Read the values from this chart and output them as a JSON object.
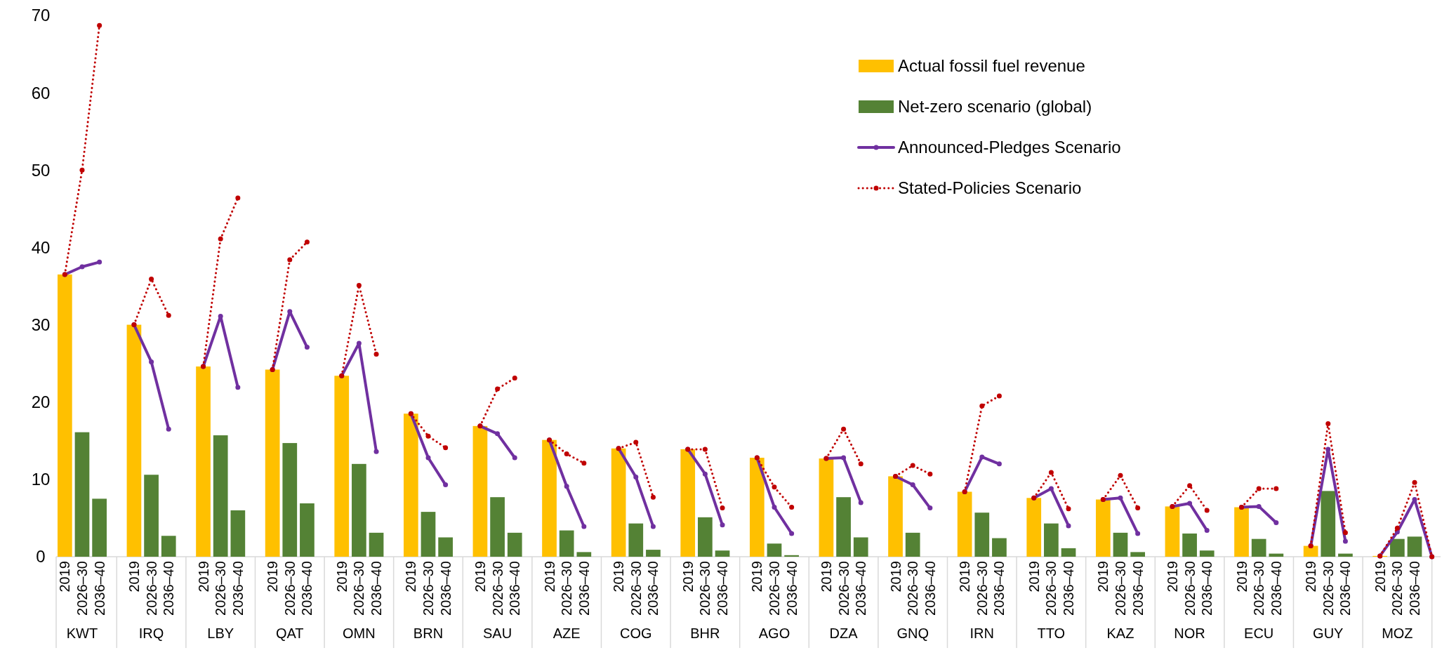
{
  "chart_data": {
    "type": "bar",
    "categories": [
      "2019",
      "2026–30",
      "2036–40",
      null,
      "2019",
      "2026–30",
      "2036–40",
      null,
      "2019",
      "2026–30",
      "2036–40",
      null,
      "2019",
      "2026–30",
      "2036–40",
      null,
      "2019",
      "2026–30",
      "2036–40",
      null,
      "2019",
      "2026–30",
      "2036–40",
      null,
      "2019",
      "2026–30",
      "2036–40",
      null,
      "2019",
      "2026–30",
      "2036–40",
      null,
      "2019",
      "2026–30",
      "2036–40",
      null,
      "2019",
      "2026–30",
      "2036–40",
      null,
      "2019",
      "2026–30",
      "2036–40",
      null,
      "2019",
      "2026–30",
      "2036–40",
      null,
      "2019",
      "2026–30",
      "2036–40",
      null,
      "2019",
      "2026–30",
      "2036–40",
      null,
      "2019",
      "2026–30",
      "2036–40",
      null,
      "2019",
      "2026–30",
      "2036–40",
      null,
      "2019",
      "2026–30",
      "2036–40",
      null,
      "2019",
      "2026–30",
      "2036–40",
      null,
      "2019",
      "2026–30",
      "2036–40",
      null,
      "2019",
      "2026–30",
      "2036–40",
      null
    ],
    "annotations": [
      "KWT",
      "IRQ",
      "LBY",
      "QAT",
      "OMN",
      "BRN",
      "SAU",
      "AZE",
      "COG",
      "BHR",
      "AGO",
      "DZA",
      "GNQ",
      "IRN",
      "TTO",
      "KAZ",
      "NOR",
      "ECU",
      "GUY",
      "MOZ"
    ],
    "series": [
      {
        "name": "Actual fossil fuel revenue",
        "color": "#ffc000",
        "values": [
          36.5,
          null,
          null,
          null,
          30,
          null,
          null,
          null,
          24.6,
          null,
          null,
          null,
          24.2,
          null,
          null,
          null,
          23.4,
          null,
          null,
          null,
          18.5,
          null,
          null,
          null,
          16.9,
          null,
          null,
          null,
          15.1,
          null,
          null,
          null,
          14.0,
          null,
          null,
          null,
          13.9,
          null,
          null,
          null,
          12.8,
          null,
          null,
          null,
          12.7,
          null,
          null,
          null,
          10.4,
          null,
          null,
          null,
          8.4,
          null,
          null,
          null,
          7.6,
          null,
          null,
          null,
          7.4,
          null,
          null,
          null,
          6.5,
          null,
          null,
          null,
          6.4,
          null,
          null,
          null,
          1.4,
          null,
          null,
          null,
          0.1,
          null,
          null,
          null
        ]
      },
      {
        "name": "Net-zero scenario (global)",
        "color": "#548235",
        "values": [
          null,
          16.1,
          7.5,
          null,
          null,
          10.6,
          2.7,
          null,
          null,
          15.7,
          6.0,
          null,
          null,
          14.7,
          6.9,
          null,
          null,
          12.0,
          3.1,
          null,
          null,
          5.8,
          2.5,
          null,
          null,
          7.7,
          3.1,
          null,
          null,
          3.4,
          0.6,
          null,
          null,
          4.3,
          0.9,
          null,
          null,
          5.1,
          0.8,
          null,
          null,
          1.7,
          0.2,
          null,
          null,
          7.7,
          2.5,
          null,
          null,
          3.1,
          null,
          null,
          null,
          5.7,
          2.4,
          null,
          null,
          4.3,
          1.1,
          null,
          null,
          3.1,
          0.6,
          null,
          null,
          3.0,
          0.8,
          null,
          null,
          2.3,
          0.4,
          null,
          null,
          8.5,
          0.4,
          null,
          null,
          2.3,
          2.6,
          null
        ]
      },
      {
        "name": "Announced-Pledges Scenario",
        "type": "line",
        "line_style": "solid",
        "color": "#7030a0",
        "values": [
          36.5,
          37.5,
          38.1,
          null,
          30,
          25.2,
          16.5,
          null,
          24.6,
          31.1,
          21.9,
          null,
          24.2,
          31.7,
          27.1,
          null,
          23.4,
          27.6,
          13.6,
          null,
          18.5,
          12.8,
          9.3,
          null,
          16.9,
          15.9,
          12.8,
          null,
          15.1,
          9.1,
          3.9,
          null,
          14.0,
          10.3,
          3.9,
          null,
          13.9,
          10.7,
          4.1,
          null,
          12.8,
          6.4,
          3.0,
          null,
          12.7,
          12.8,
          7.0,
          null,
          10.4,
          9.3,
          6.3,
          null,
          8.4,
          12.9,
          12.0,
          null,
          7.6,
          8.8,
          4.0,
          null,
          7.4,
          7.6,
          3.0,
          null,
          6.5,
          6.9,
          3.4,
          null,
          6.4,
          6.5,
          4.4,
          null,
          1.4,
          13.9,
          2.0,
          null,
          0.1,
          3.2,
          7.4,
          0
        ]
      },
      {
        "name": "Stated-Policies Scenario",
        "type": "line",
        "line_style": "dotted",
        "color": "#c00000",
        "values": [
          36.5,
          50,
          68.7,
          null,
          30,
          35.9,
          31.2,
          null,
          24.6,
          41.1,
          46.4,
          null,
          24.2,
          38.4,
          40.7,
          null,
          23.4,
          35.1,
          26.2,
          null,
          18.5,
          15.6,
          14.1,
          null,
          16.9,
          21.7,
          23.1,
          null,
          15.1,
          13.3,
          12.1,
          null,
          14.0,
          14.8,
          7.7,
          null,
          13.9,
          13.9,
          6.3,
          null,
          12.8,
          9.0,
          6.4,
          null,
          12.7,
          16.5,
          12.0,
          null,
          10.4,
          11.8,
          10.7,
          null,
          8.4,
          19.5,
          20.8,
          null,
          7.6,
          10.9,
          6.2,
          null,
          7.4,
          10.5,
          6.3,
          null,
          6.5,
          9.2,
          6.0,
          null,
          6.4,
          8.8,
          8.8,
          null,
          1.4,
          17.2,
          3.1,
          null,
          0.1,
          3.7,
          9.6,
          0
        ]
      }
    ],
    "ylim": [
      0,
      70
    ],
    "yticks": [
      0,
      10,
      20,
      30,
      40,
      50,
      60,
      70
    ],
    "grid": false,
    "legend": "top right",
    "marker": "circle"
  }
}
